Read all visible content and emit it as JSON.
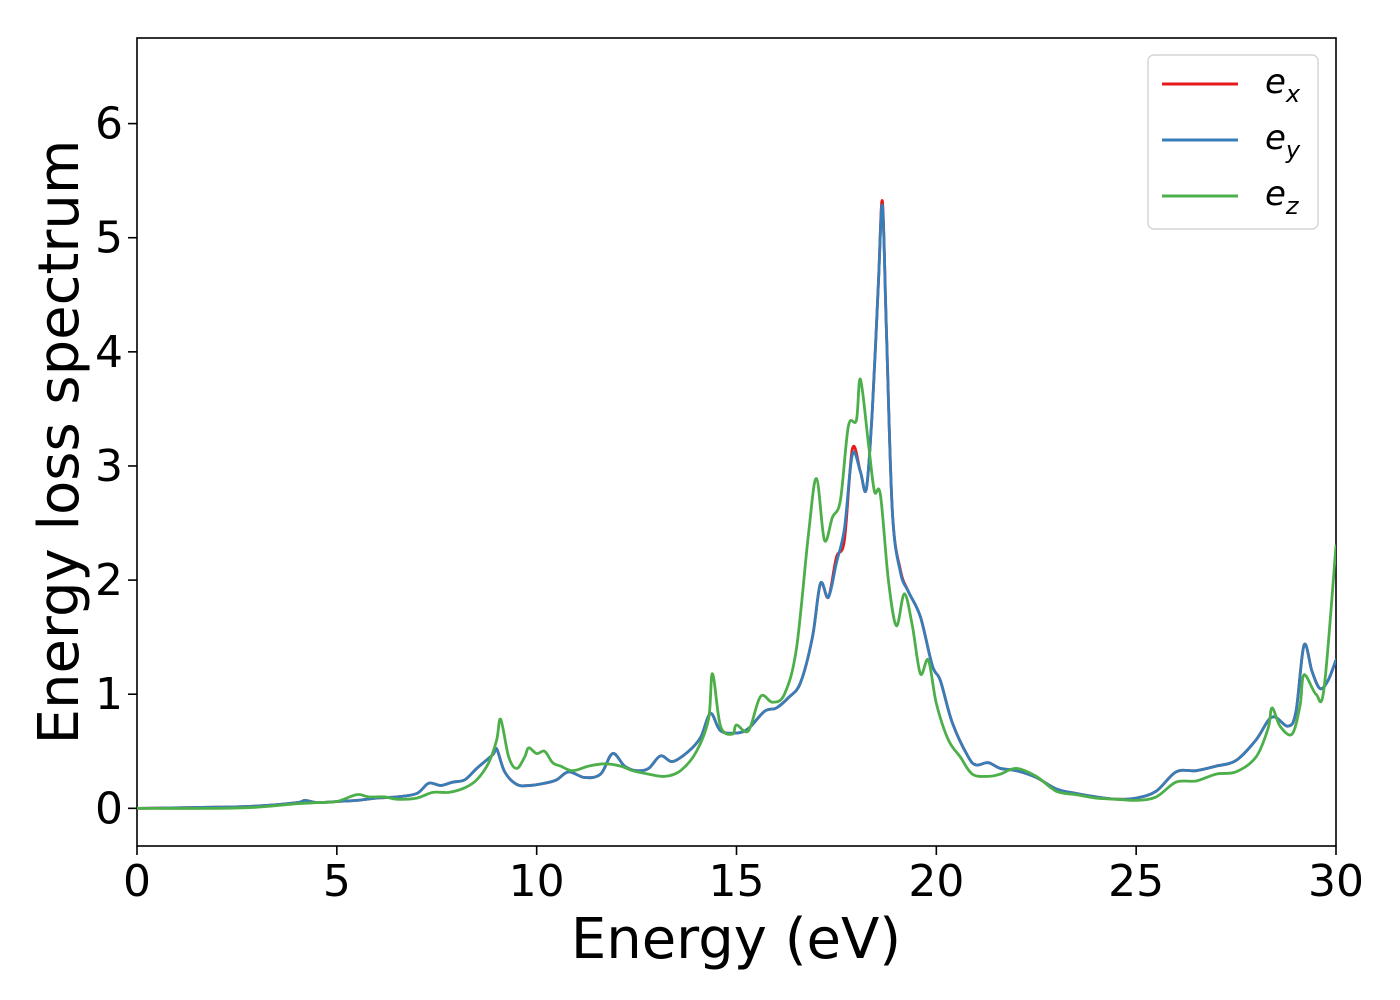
{
  "chart_data": {
    "type": "line",
    "title": "",
    "xlabel": "Energy (eV)",
    "ylabel": "Energy loss spectrum",
    "xlim": [
      0,
      30
    ],
    "ylim": [
      -0.33,
      6.75
    ],
    "xticks": [
      0,
      5,
      10,
      15,
      20,
      25,
      30
    ],
    "yticks": [
      0,
      1,
      2,
      3,
      4,
      5,
      6
    ],
    "xtick_labels": [
      "0",
      "5",
      "10",
      "15",
      "20",
      "25",
      "30"
    ],
    "ytick_labels": [
      "0",
      "1",
      "2",
      "3",
      "4",
      "5",
      "6"
    ],
    "grid": false,
    "legend_position": "top-right",
    "series": [
      {
        "name": "e_x",
        "legend_main": "e",
        "legend_sub": "x",
        "color": "#e41a1c",
        "points": [
          [
            0,
            0
          ],
          [
            2,
            0.01
          ],
          [
            3,
            0.02
          ],
          [
            4,
            0.05
          ],
          [
            4.2,
            0.07
          ],
          [
            4.5,
            0.05
          ],
          [
            5,
            0.06
          ],
          [
            5.5,
            0.07
          ],
          [
            6,
            0.09
          ],
          [
            6.5,
            0.1
          ],
          [
            7,
            0.13
          ],
          [
            7.3,
            0.22
          ],
          [
            7.6,
            0.2
          ],
          [
            7.9,
            0.23
          ],
          [
            8.2,
            0.25
          ],
          [
            8.5,
            0.35
          ],
          [
            8.9,
            0.47
          ],
          [
            9.0,
            0.52
          ],
          [
            9.2,
            0.32
          ],
          [
            9.5,
            0.21
          ],
          [
            9.8,
            0.2
          ],
          [
            10.2,
            0.22
          ],
          [
            10.5,
            0.25
          ],
          [
            10.8,
            0.32
          ],
          [
            11.2,
            0.27
          ],
          [
            11.6,
            0.3
          ],
          [
            11.9,
            0.48
          ],
          [
            12.2,
            0.37
          ],
          [
            12.5,
            0.33
          ],
          [
            12.8,
            0.35
          ],
          [
            13.1,
            0.46
          ],
          [
            13.4,
            0.41
          ],
          [
            13.8,
            0.5
          ],
          [
            14.1,
            0.62
          ],
          [
            14.35,
            0.83
          ],
          [
            14.6,
            0.68
          ],
          [
            15.0,
            0.66
          ],
          [
            15.3,
            0.7
          ],
          [
            15.7,
            0.85
          ],
          [
            16.0,
            0.88
          ],
          [
            16.3,
            0.97
          ],
          [
            16.6,
            1.1
          ],
          [
            16.9,
            1.5
          ],
          [
            17.1,
            1.97
          ],
          [
            17.3,
            1.85
          ],
          [
            17.5,
            2.2
          ],
          [
            17.7,
            2.35
          ],
          [
            17.9,
            3.15
          ],
          [
            18.1,
            2.95
          ],
          [
            18.25,
            2.8
          ],
          [
            18.4,
            3.5
          ],
          [
            18.55,
            4.6
          ],
          [
            18.65,
            5.32
          ],
          [
            18.75,
            4.2
          ],
          [
            18.9,
            2.6
          ],
          [
            19.1,
            2.09
          ],
          [
            19.3,
            1.9
          ],
          [
            19.6,
            1.68
          ],
          [
            19.9,
            1.25
          ],
          [
            20.1,
            1.12
          ],
          [
            20.4,
            0.75
          ],
          [
            20.8,
            0.45
          ],
          [
            21.0,
            0.38
          ],
          [
            21.3,
            0.4
          ],
          [
            21.6,
            0.35
          ],
          [
            22.0,
            0.33
          ],
          [
            22.5,
            0.27
          ],
          [
            23.0,
            0.17
          ],
          [
            23.5,
            0.13
          ],
          [
            24.0,
            0.1
          ],
          [
            24.5,
            0.08
          ],
          [
            25.0,
            0.09
          ],
          [
            25.5,
            0.15
          ],
          [
            26.0,
            0.32
          ],
          [
            26.5,
            0.33
          ],
          [
            27.0,
            0.37
          ],
          [
            27.5,
            0.42
          ],
          [
            28.0,
            0.6
          ],
          [
            28.4,
            0.8
          ],
          [
            28.8,
            0.72
          ],
          [
            29.0,
            0.85
          ],
          [
            29.2,
            1.43
          ],
          [
            29.4,
            1.2
          ],
          [
            29.6,
            1.05
          ],
          [
            29.8,
            1.12
          ],
          [
            30.0,
            1.3
          ]
        ]
      },
      {
        "name": "e_y",
        "legend_main": "e",
        "legend_sub": "y",
        "color": "#377eb8",
        "points": [
          [
            0,
            0
          ],
          [
            2,
            0.01
          ],
          [
            3,
            0.02
          ],
          [
            4,
            0.05
          ],
          [
            4.2,
            0.07
          ],
          [
            4.5,
            0.05
          ],
          [
            5,
            0.06
          ],
          [
            5.5,
            0.07
          ],
          [
            6,
            0.09
          ],
          [
            6.5,
            0.1
          ],
          [
            7,
            0.13
          ],
          [
            7.3,
            0.22
          ],
          [
            7.6,
            0.2
          ],
          [
            7.9,
            0.23
          ],
          [
            8.2,
            0.25
          ],
          [
            8.5,
            0.35
          ],
          [
            8.9,
            0.47
          ],
          [
            9.0,
            0.52
          ],
          [
            9.2,
            0.32
          ],
          [
            9.5,
            0.21
          ],
          [
            9.8,
            0.2
          ],
          [
            10.2,
            0.22
          ],
          [
            10.5,
            0.25
          ],
          [
            10.8,
            0.32
          ],
          [
            11.2,
            0.27
          ],
          [
            11.6,
            0.3
          ],
          [
            11.9,
            0.48
          ],
          [
            12.2,
            0.37
          ],
          [
            12.5,
            0.33
          ],
          [
            12.8,
            0.35
          ],
          [
            13.1,
            0.46
          ],
          [
            13.4,
            0.41
          ],
          [
            13.8,
            0.5
          ],
          [
            14.1,
            0.62
          ],
          [
            14.35,
            0.83
          ],
          [
            14.6,
            0.68
          ],
          [
            15.0,
            0.66
          ],
          [
            15.3,
            0.7
          ],
          [
            15.7,
            0.85
          ],
          [
            16.0,
            0.88
          ],
          [
            16.3,
            0.97
          ],
          [
            16.6,
            1.1
          ],
          [
            16.9,
            1.5
          ],
          [
            17.1,
            1.97
          ],
          [
            17.3,
            1.85
          ],
          [
            17.5,
            2.15
          ],
          [
            17.7,
            2.45
          ],
          [
            17.9,
            3.1
          ],
          [
            18.1,
            2.95
          ],
          [
            18.25,
            2.8
          ],
          [
            18.4,
            3.5
          ],
          [
            18.55,
            4.6
          ],
          [
            18.65,
            5.28
          ],
          [
            18.75,
            4.2
          ],
          [
            18.9,
            2.6
          ],
          [
            19.1,
            2.07
          ],
          [
            19.3,
            1.9
          ],
          [
            19.6,
            1.68
          ],
          [
            19.9,
            1.25
          ],
          [
            20.1,
            1.12
          ],
          [
            20.4,
            0.75
          ],
          [
            20.8,
            0.45
          ],
          [
            21.0,
            0.38
          ],
          [
            21.3,
            0.4
          ],
          [
            21.6,
            0.35
          ],
          [
            22.0,
            0.33
          ],
          [
            22.5,
            0.27
          ],
          [
            23.0,
            0.17
          ],
          [
            23.5,
            0.13
          ],
          [
            24.0,
            0.1
          ],
          [
            24.5,
            0.08
          ],
          [
            25.0,
            0.09
          ],
          [
            25.5,
            0.15
          ],
          [
            26.0,
            0.32
          ],
          [
            26.5,
            0.33
          ],
          [
            27.0,
            0.37
          ],
          [
            27.5,
            0.42
          ],
          [
            28.0,
            0.6
          ],
          [
            28.4,
            0.8
          ],
          [
            28.8,
            0.72
          ],
          [
            29.0,
            0.85
          ],
          [
            29.2,
            1.43
          ],
          [
            29.4,
            1.2
          ],
          [
            29.6,
            1.05
          ],
          [
            29.8,
            1.12
          ],
          [
            30.0,
            1.3
          ]
        ]
      },
      {
        "name": "e_z",
        "legend_main": "e",
        "legend_sub": "z",
        "color": "#4daf4a",
        "points": [
          [
            0,
            0
          ],
          [
            2,
            0.0
          ],
          [
            3,
            0.01
          ],
          [
            4,
            0.04
          ],
          [
            4.5,
            0.05
          ],
          [
            5,
            0.06
          ],
          [
            5.5,
            0.12
          ],
          [
            5.8,
            0.1
          ],
          [
            6.2,
            0.1
          ],
          [
            6.5,
            0.08
          ],
          [
            7,
            0.09
          ],
          [
            7.4,
            0.14
          ],
          [
            7.8,
            0.14
          ],
          [
            8.2,
            0.18
          ],
          [
            8.5,
            0.25
          ],
          [
            8.8,
            0.4
          ],
          [
            9.0,
            0.6
          ],
          [
            9.1,
            0.78
          ],
          [
            9.3,
            0.45
          ],
          [
            9.5,
            0.35
          ],
          [
            9.7,
            0.45
          ],
          [
            9.8,
            0.53
          ],
          [
            10.0,
            0.48
          ],
          [
            10.2,
            0.5
          ],
          [
            10.4,
            0.4
          ],
          [
            10.6,
            0.37
          ],
          [
            10.9,
            0.33
          ],
          [
            11.3,
            0.37
          ],
          [
            11.7,
            0.39
          ],
          [
            12.1,
            0.37
          ],
          [
            12.4,
            0.33
          ],
          [
            12.8,
            0.3
          ],
          [
            13.2,
            0.28
          ],
          [
            13.6,
            0.33
          ],
          [
            14.0,
            0.5
          ],
          [
            14.3,
            0.78
          ],
          [
            14.4,
            1.18
          ],
          [
            14.6,
            0.72
          ],
          [
            14.9,
            0.65
          ],
          [
            15.0,
            0.73
          ],
          [
            15.3,
            0.68
          ],
          [
            15.6,
            0.98
          ],
          [
            15.9,
            0.93
          ],
          [
            16.2,
            1.0
          ],
          [
            16.5,
            1.4
          ],
          [
            16.8,
            2.4
          ],
          [
            17.0,
            2.89
          ],
          [
            17.2,
            2.35
          ],
          [
            17.4,
            2.55
          ],
          [
            17.6,
            2.7
          ],
          [
            17.8,
            3.35
          ],
          [
            18.0,
            3.4
          ],
          [
            18.1,
            3.76
          ],
          [
            18.3,
            3.2
          ],
          [
            18.45,
            2.78
          ],
          [
            18.6,
            2.75
          ],
          [
            18.8,
            2.0
          ],
          [
            19.0,
            1.6
          ],
          [
            19.2,
            1.88
          ],
          [
            19.4,
            1.6
          ],
          [
            19.6,
            1.18
          ],
          [
            19.8,
            1.3
          ],
          [
            20.0,
            0.92
          ],
          [
            20.3,
            0.6
          ],
          [
            20.6,
            0.45
          ],
          [
            20.9,
            0.3
          ],
          [
            21.3,
            0.28
          ],
          [
            21.6,
            0.3
          ],
          [
            22.0,
            0.35
          ],
          [
            22.5,
            0.28
          ],
          [
            23.0,
            0.15
          ],
          [
            23.5,
            0.12
          ],
          [
            24.0,
            0.09
          ],
          [
            24.5,
            0.08
          ],
          [
            25.0,
            0.07
          ],
          [
            25.5,
            0.1
          ],
          [
            26.0,
            0.23
          ],
          [
            26.5,
            0.24
          ],
          [
            27.0,
            0.3
          ],
          [
            27.5,
            0.32
          ],
          [
            28.0,
            0.45
          ],
          [
            28.3,
            0.7
          ],
          [
            28.4,
            0.88
          ],
          [
            28.6,
            0.72
          ],
          [
            28.9,
            0.65
          ],
          [
            29.1,
            0.9
          ],
          [
            29.2,
            1.17
          ],
          [
            29.5,
            1.0
          ],
          [
            29.7,
            1.05
          ],
          [
            30.0,
            2.3
          ]
        ]
      }
    ]
  }
}
